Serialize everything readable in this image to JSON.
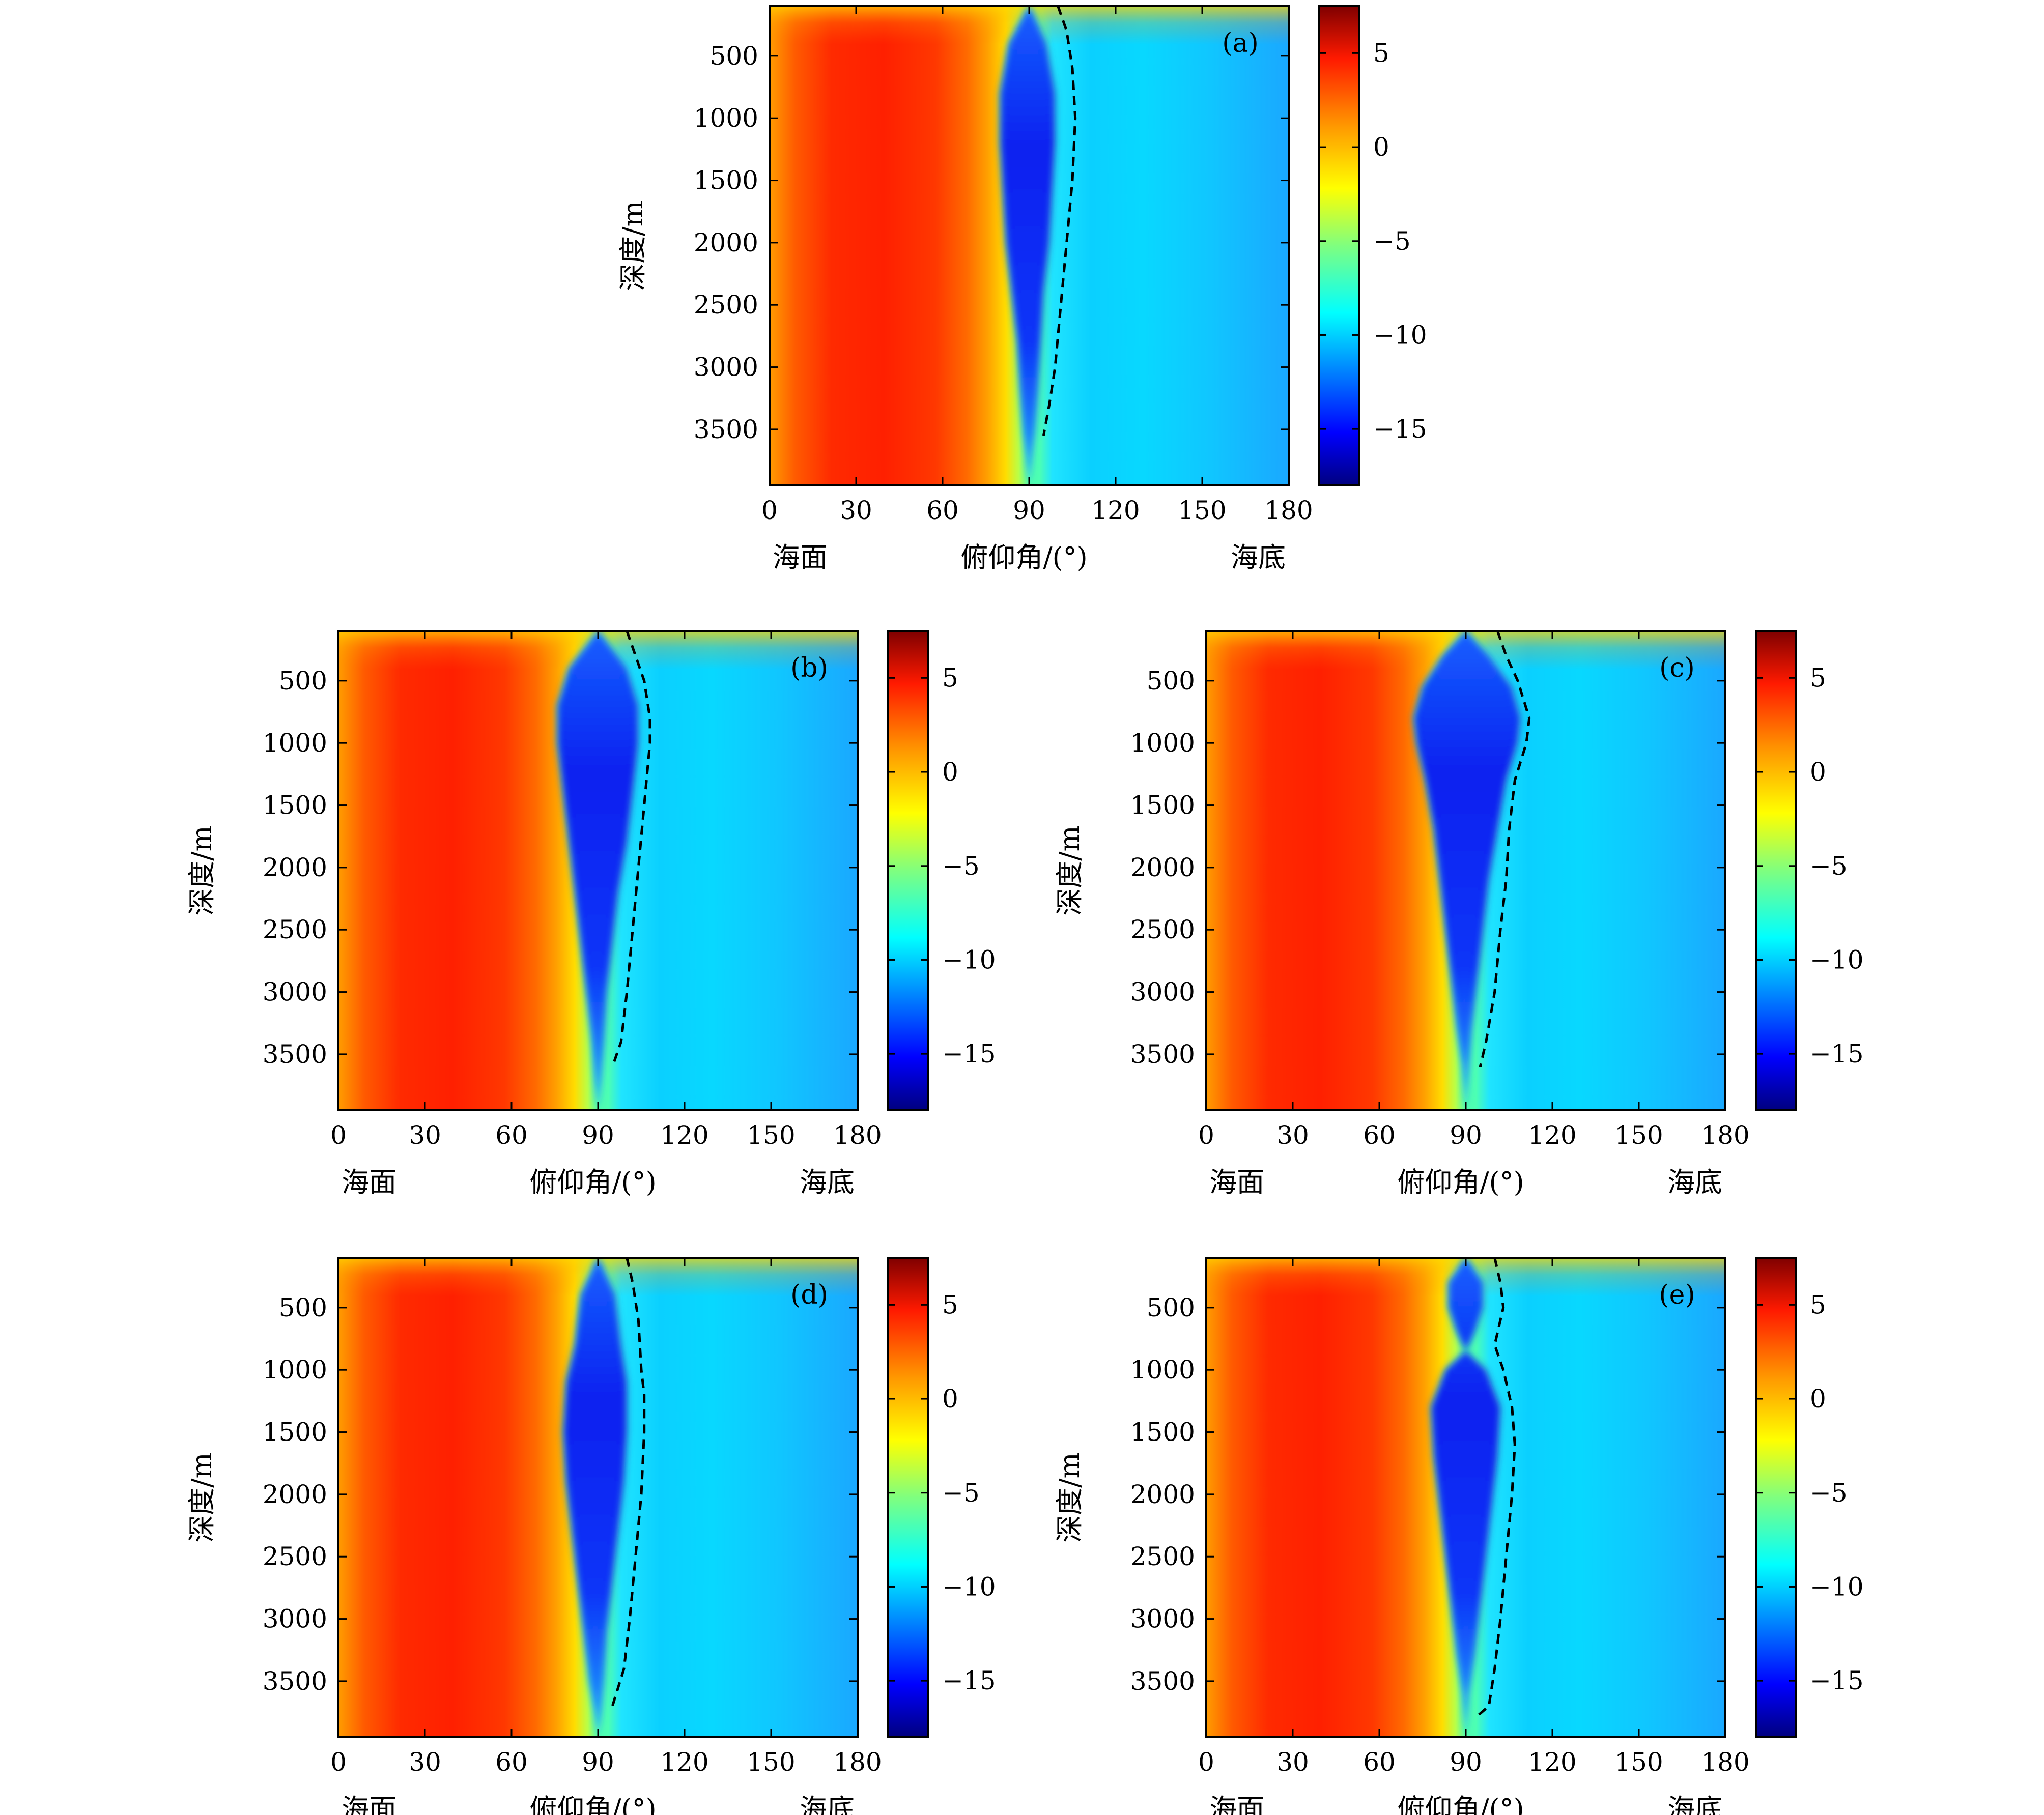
{
  "chart_data": [
    {
      "type": "heatmap",
      "panel_label": "(a)",
      "xlabel": "俯仰角/(°)",
      "x_left_label": "海面",
      "x_right_label": "海底",
      "ylabel": "深度/m",
      "xlim": [
        0,
        180
      ],
      "ylim": [
        100,
        3950
      ],
      "y_inverted": true,
      "x_ticks": [
        0,
        30,
        60,
        90,
        120,
        150,
        180
      ],
      "y_ticks": [
        500,
        1000,
        1500,
        2000,
        2500,
        3000,
        3500
      ],
      "colorbar": {
        "range": [
          -18,
          7.5
        ],
        "ticks": [
          5,
          0,
          -5,
          -10,
          -15
        ],
        "colormap": "jet"
      },
      "colorbar_tick_labels": [
        "5",
        "0",
        "−5",
        "−10",
        "−15"
      ],
      "blue_region": {
        "depth": [
          100,
          400,
          800,
          1200,
          1600,
          2000,
          2400,
          2800,
          3200,
          3500,
          3700,
          3950
        ],
        "left_deg": [
          90,
          83,
          80,
          80,
          81,
          82,
          84,
          86,
          87,
          88,
          89,
          90
        ],
        "right_deg": [
          90,
          96,
          99,
          99,
          98,
          97,
          95,
          94,
          93,
          92,
          91,
          90
        ]
      },
      "dashed_line": {
        "depth": [
          100,
          300,
          600,
          1000,
          1500,
          2000,
          2500,
          3000,
          3300,
          3550
        ],
        "angle_deg": [
          100,
          103,
          105,
          106,
          105,
          103,
          101,
          99,
          97,
          95
        ]
      }
    },
    {
      "type": "heatmap",
      "panel_label": "(b)",
      "xlabel": "俯仰角/(°)",
      "x_left_label": "海面",
      "x_right_label": "海底",
      "ylabel": "深度/m",
      "xlim": [
        0,
        180
      ],
      "ylim": [
        100,
        3950
      ],
      "y_inverted": true,
      "x_ticks": [
        0,
        30,
        60,
        90,
        120,
        150,
        180
      ],
      "y_ticks": [
        500,
        1000,
        1500,
        2000,
        2500,
        3000,
        3500
      ],
      "colorbar": {
        "range": [
          -18,
          7.5
        ],
        "ticks": [
          5,
          0,
          -5,
          -10,
          -15
        ],
        "colormap": "jet"
      },
      "colorbar_tick_labels": [
        "5",
        "0",
        "−5",
        "−10",
        "−15"
      ],
      "blue_region": {
        "depth": [
          100,
          400,
          700,
          1000,
          1400,
          1800,
          2200,
          2600,
          3000,
          3400,
          3700,
          3950
        ],
        "left_deg": [
          90,
          80,
          76,
          76,
          78,
          80,
          82,
          84,
          86,
          88,
          89,
          90
        ],
        "right_deg": [
          90,
          100,
          104,
          104,
          102,
          100,
          97,
          95,
          93,
          92,
          91,
          90
        ]
      },
      "dashed_line": {
        "depth": [
          100,
          300,
          500,
          800,
          1000,
          1500,
          2000,
          2500,
          3000,
          3400,
          3600
        ],
        "angle_deg": [
          100,
          103,
          106,
          108,
          108,
          106,
          104,
          102,
          100,
          98,
          95
        ]
      }
    },
    {
      "type": "heatmap",
      "panel_label": "(c)",
      "xlabel": "俯仰角/(°)",
      "x_left_label": "海面",
      "x_right_label": "海底",
      "ylabel": "深度/m",
      "xlim": [
        0,
        180
      ],
      "ylim": [
        100,
        3950
      ],
      "y_inverted": true,
      "x_ticks": [
        0,
        30,
        60,
        90,
        120,
        150,
        180
      ],
      "y_ticks": [
        500,
        1000,
        1500,
        2000,
        2500,
        3000,
        3500
      ],
      "colorbar": {
        "range": [
          -18,
          7.5
        ],
        "ticks": [
          5,
          0,
          -5,
          -10,
          -15
        ],
        "colormap": "jet"
      },
      "colorbar_tick_labels": [
        "5",
        "0",
        "−5",
        "−10",
        "−15"
      ],
      "blue_region": {
        "depth": [
          100,
          300,
          550,
          800,
          1000,
          1300,
          1700,
          2100,
          2500,
          2900,
          3300,
          3600,
          3950
        ],
        "left_deg": [
          90,
          82,
          75,
          72,
          73,
          76,
          79,
          81,
          83,
          85,
          87,
          89,
          90
        ],
        "right_deg": [
          90,
          98,
          106,
          109,
          108,
          104,
          101,
          98,
          96,
          94,
          92,
          91,
          90
        ]
      },
      "dashed_line": {
        "depth": [
          100,
          300,
          500,
          800,
          1000,
          1300,
          1700,
          2100,
          2500,
          3000,
          3400,
          3600
        ],
        "angle_deg": [
          101,
          104,
          108,
          112,
          111,
          107,
          105,
          104,
          102,
          100,
          97,
          95
        ]
      }
    },
    {
      "type": "heatmap",
      "panel_label": "(d)",
      "xlabel": "俯仰角/(°)",
      "x_left_label": "海面",
      "x_right_label": "海底",
      "ylabel": "深度/m",
      "xlim": [
        0,
        180
      ],
      "ylim": [
        100,
        3950
      ],
      "y_inverted": true,
      "x_ticks": [
        0,
        30,
        60,
        90,
        120,
        150,
        180
      ],
      "y_ticks": [
        500,
        1000,
        1500,
        2000,
        2500,
        3000,
        3500
      ],
      "colorbar": {
        "range": [
          -18,
          7.5
        ],
        "ticks": [
          5,
          0,
          -5,
          -10,
          -15
        ],
        "colormap": "jet"
      },
      "colorbar_tick_labels": [
        "5",
        "0",
        "−5",
        "−10",
        "−15"
      ],
      "blue_region": {
        "depth": [
          100,
          400,
          800,
          1100,
          1500,
          1900,
          2300,
          2700,
          3100,
          3500,
          3750,
          3950
        ],
        "left_deg": [
          90,
          84,
          82,
          79,
          78,
          79,
          81,
          83,
          85,
          87,
          89,
          90
        ],
        "right_deg": [
          90,
          96,
          98,
          100,
          100,
          99,
          97,
          95,
          93,
          92,
          91,
          90
        ]
      },
      "dashed_line": {
        "depth": [
          100,
          300,
          600,
          1000,
          1200,
          1500,
          2000,
          2500,
          3000,
          3400,
          3700
        ],
        "angle_deg": [
          100,
          102,
          104,
          105,
          106,
          106,
          105,
          103,
          101,
          99,
          95
        ]
      }
    },
    {
      "type": "heatmap",
      "panel_label": "(e)",
      "xlabel": "俯仰角/(°)",
      "x_left_label": "海面",
      "x_right_label": "海底",
      "ylabel": "深度/m",
      "xlim": [
        0,
        180
      ],
      "ylim": [
        100,
        3950
      ],
      "y_inverted": true,
      "x_ticks": [
        0,
        30,
        60,
        90,
        120,
        150,
        180
      ],
      "y_ticks": [
        500,
        1000,
        1500,
        2000,
        2500,
        3000,
        3500
      ],
      "colorbar": {
        "range": [
          -18,
          7.5
        ],
        "ticks": [
          5,
          0,
          -5,
          -10,
          -15
        ],
        "colormap": "jet"
      },
      "colorbar_tick_labels": [
        "5",
        "0",
        "−5",
        "−10",
        "−15"
      ],
      "blue_region": {
        "depth": [
          100,
          300,
          500,
          700,
          850,
          1000,
          1300,
          1700,
          2100,
          2500,
          2900,
          3300,
          3600,
          3950
        ],
        "left_deg": [
          90,
          84,
          84,
          87,
          90,
          83,
          78,
          79,
          81,
          83,
          85,
          87,
          89,
          90
        ],
        "right_deg": [
          90,
          96,
          96,
          93,
          90,
          97,
          102,
          101,
          99,
          97,
          95,
          93,
          91,
          90
        ]
      },
      "dashed_line": {
        "depth": [
          100,
          300,
          500,
          700,
          800,
          1000,
          1300,
          1600,
          2000,
          2500,
          3000,
          3400,
          3700,
          3800
        ],
        "angle_deg": [
          100,
          102,
          103,
          101,
          100,
          103,
          106,
          107,
          106,
          104,
          102,
          100,
          98,
          93
        ]
      }
    }
  ],
  "colors": {
    "dashed_line": "#000000",
    "frame": "#000000"
  }
}
